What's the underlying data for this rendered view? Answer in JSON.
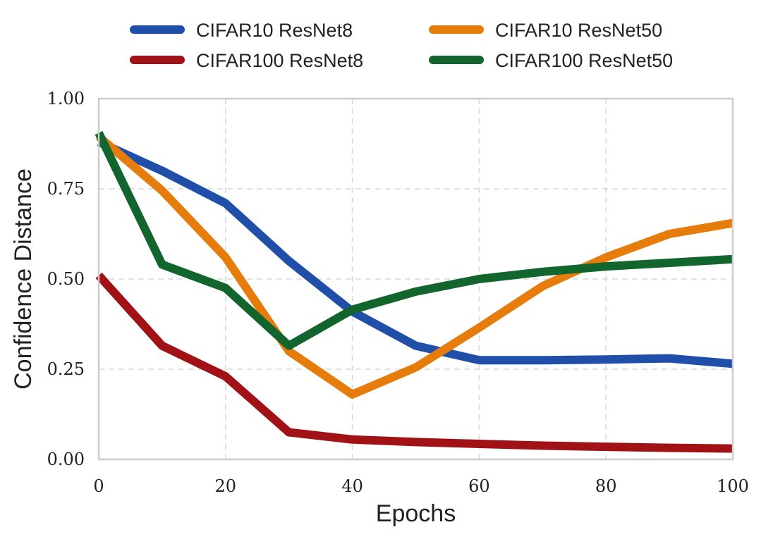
{
  "chart_data": {
    "type": "line",
    "xlabel": "Epochs",
    "ylabel": "Confidence Distance",
    "xlim": [
      0,
      100
    ],
    "ylim": [
      0,
      1
    ],
    "xticks": [
      0,
      20,
      40,
      60,
      80,
      100
    ],
    "yticks": [
      0,
      0.25,
      0.5,
      0.75,
      1.0
    ],
    "xtick_labels": [
      "0",
      "20",
      "40",
      "60",
      "80",
      "100"
    ],
    "ytick_labels": [
      "0.00",
      "0.25",
      "0.50",
      "0.75",
      "1.00"
    ],
    "grid": true,
    "legend_position": "top, two columns",
    "series": [
      {
        "name": "CIFAR10 ResNet8",
        "color": "#1f4fa8",
        "x": [
          0,
          10,
          20,
          30,
          40,
          50,
          60,
          70,
          80,
          90,
          100
        ],
        "values": [
          0.88,
          0.8,
          0.71,
          0.55,
          0.41,
          0.315,
          0.275,
          0.275,
          0.277,
          0.28,
          0.265
        ]
      },
      {
        "name": "CIFAR10 ResNet50",
        "color": "#e67c0b",
        "x": [
          0,
          10,
          20,
          30,
          40,
          50,
          60,
          70,
          80,
          90,
          100
        ],
        "values": [
          0.895,
          0.745,
          0.56,
          0.3,
          0.18,
          0.255,
          0.365,
          0.48,
          0.56,
          0.625,
          0.655
        ]
      },
      {
        "name": "CIFAR100 ResNet8",
        "color": "#a11216",
        "x": [
          0,
          10,
          20,
          30,
          40,
          50,
          60,
          70,
          80,
          90,
          100
        ],
        "values": [
          0.51,
          0.315,
          0.23,
          0.075,
          0.055,
          0.048,
          0.043,
          0.038,
          0.035,
          0.032,
          0.03
        ]
      },
      {
        "name": "CIFAR100 ResNet50",
        "color": "#13652e",
        "x": [
          0,
          10,
          20,
          30,
          40,
          50,
          60,
          70,
          80,
          90,
          100
        ],
        "values": [
          0.905,
          0.54,
          0.475,
          0.315,
          0.415,
          0.465,
          0.5,
          0.52,
          0.535,
          0.545,
          0.555
        ]
      }
    ]
  }
}
